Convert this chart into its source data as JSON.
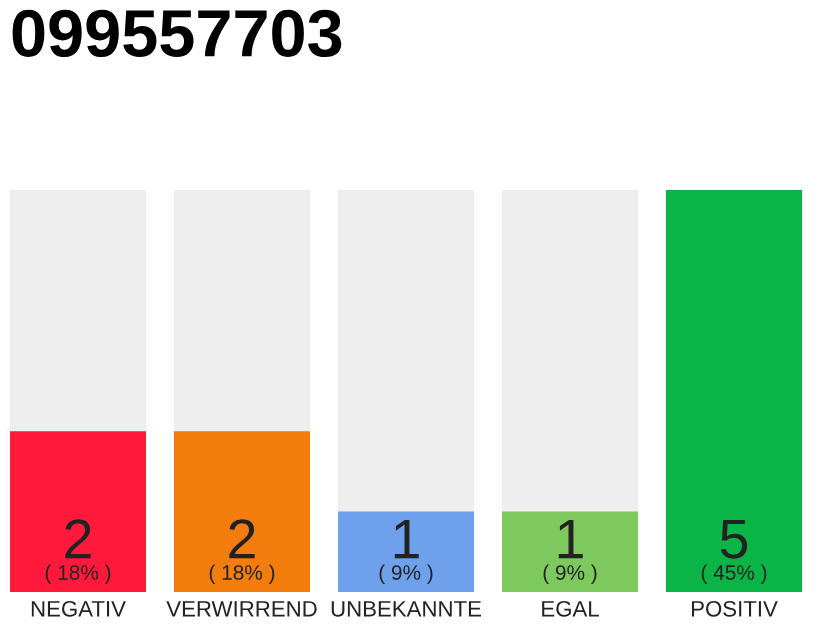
{
  "chart_data": {
    "type": "bar",
    "title": "099557703",
    "categories": [
      "NEGATIV",
      "VERWIRREND",
      "UNBEKANNTE",
      "EGAL",
      "POSITIV"
    ],
    "values": [
      2,
      2,
      1,
      1,
      5
    ],
    "colors": [
      "#ff1a3c",
      "#f27d0c",
      "#6fa0ec",
      "#7dc95e",
      "#0ab446"
    ],
    "tick_labels": "x",
    "data_labels": true,
    "grid": false,
    "annotations": [
      "( 18% )",
      "( 18% )",
      "( 9% )",
      "( 9% )",
      "( 45% )"
    ]
  }
}
